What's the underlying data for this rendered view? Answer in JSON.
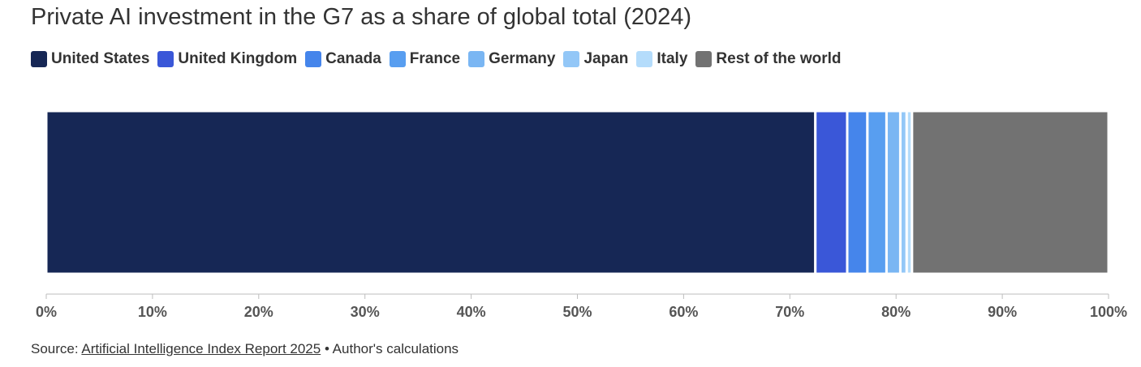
{
  "chart_data": {
    "type": "bar",
    "orientation": "horizontal",
    "stacked": true,
    "title": "Private AI investment in the G7 as a share of global total (2024)",
    "xlabel": "",
    "ylabel": "",
    "xlim": [
      0,
      100
    ],
    "x_ticks": [
      "0%",
      "10%",
      "20%",
      "30%",
      "40%",
      "50%",
      "60%",
      "70%",
      "80%",
      "90%",
      "100%"
    ],
    "legend_placement": "top-left",
    "series": [
      {
        "name": "United States",
        "value": 72.4,
        "color": "#162755"
      },
      {
        "name": "United Kingdom",
        "value": 3.0,
        "color": "#3a57d8"
      },
      {
        "name": "Canada",
        "value": 1.9,
        "color": "#4585eb"
      },
      {
        "name": "France",
        "value": 1.8,
        "color": "#589ef0"
      },
      {
        "name": "Germany",
        "value": 1.3,
        "color": "#7ab6f3"
      },
      {
        "name": "Japan",
        "value": 0.6,
        "color": "#93c7f7"
      },
      {
        "name": "Italy",
        "value": 0.5,
        "color": "#b4dcfb"
      },
      {
        "name": "Rest of the world",
        "value": 18.5,
        "color": "#727272"
      }
    ]
  },
  "source": {
    "prefix": "Source: ",
    "link_text": "Artificial Intelligence Index Report 2025",
    "suffix": " • Author's calculations"
  }
}
